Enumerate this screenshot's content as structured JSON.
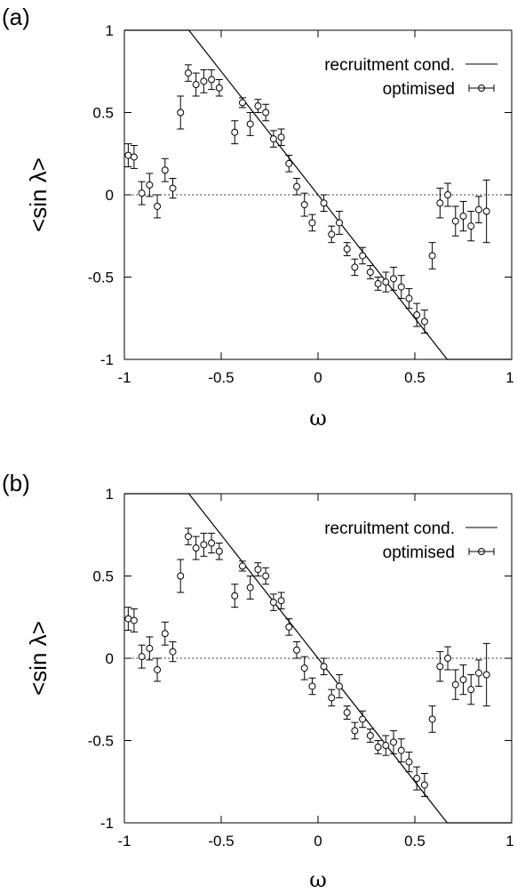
{
  "chart_data": [
    {
      "type": "scatter",
      "panel_label": "(a)",
      "xlabel": "ω",
      "ylabel": "<sin λ>",
      "xlim": [
        -1,
        1
      ],
      "ylim": [
        -1,
        1
      ],
      "xticks": [
        -1,
        -0.5,
        0,
        0.5,
        1
      ],
      "yticks": [
        -1,
        -0.5,
        0,
        0.5,
        1
      ],
      "xtick_labels": [
        "-1",
        "-0.5",
        "0",
        "0.5",
        "1"
      ],
      "ytick_labels": [
        "-1",
        "-0.5",
        "0",
        "0.5",
        "1"
      ],
      "zero_line": "dotted",
      "legend_position": "top-right",
      "series": [
        {
          "name": "recruitment cond.",
          "style": "line",
          "x": [
            -1,
            -0.667,
            0.667,
            1
          ],
          "y": [
            1,
            1,
            -1,
            -1
          ]
        },
        {
          "name": "optimised",
          "style": "points-with-errorbars",
          "points": [
            {
              "x": -0.98,
              "y": 0.24,
              "err": 0.07
            },
            {
              "x": -0.95,
              "y": 0.23,
              "err": 0.07
            },
            {
              "x": -0.91,
              "y": 0.01,
              "err": 0.07
            },
            {
              "x": -0.87,
              "y": 0.06,
              "err": 0.07
            },
            {
              "x": -0.83,
              "y": -0.07,
              "err": 0.07
            },
            {
              "x": -0.79,
              "y": 0.15,
              "err": 0.07
            },
            {
              "x": -0.75,
              "y": 0.04,
              "err": 0.06
            },
            {
              "x": -0.71,
              "y": 0.5,
              "err": 0.1
            },
            {
              "x": -0.67,
              "y": 0.74,
              "err": 0.05
            },
            {
              "x": -0.63,
              "y": 0.67,
              "err": 0.07
            },
            {
              "x": -0.59,
              "y": 0.69,
              "err": 0.07
            },
            {
              "x": -0.55,
              "y": 0.7,
              "err": 0.06
            },
            {
              "x": -0.51,
              "y": 0.65,
              "err": 0.05
            },
            {
              "x": -0.43,
              "y": 0.38,
              "err": 0.07
            },
            {
              "x": -0.39,
              "y": 0.56,
              "err": 0.03
            },
            {
              "x": -0.35,
              "y": 0.43,
              "err": 0.07
            },
            {
              "x": -0.31,
              "y": 0.54,
              "err": 0.04
            },
            {
              "x": -0.27,
              "y": 0.5,
              "err": 0.05
            },
            {
              "x": -0.23,
              "y": 0.34,
              "err": 0.05
            },
            {
              "x": -0.19,
              "y": 0.35,
              "err": 0.05
            },
            {
              "x": -0.15,
              "y": 0.19,
              "err": 0.05
            },
            {
              "x": -0.11,
              "y": 0.05,
              "err": 0.05
            },
            {
              "x": -0.07,
              "y": -0.06,
              "err": 0.07
            },
            {
              "x": -0.03,
              "y": -0.17,
              "err": 0.05
            },
            {
              "x": 0.03,
              "y": -0.05,
              "err": 0.05
            },
            {
              "x": 0.07,
              "y": -0.24,
              "err": 0.05
            },
            {
              "x": 0.11,
              "y": -0.17,
              "err": 0.07
            },
            {
              "x": 0.15,
              "y": -0.33,
              "err": 0.04
            },
            {
              "x": 0.19,
              "y": -0.44,
              "err": 0.05
            },
            {
              "x": 0.23,
              "y": -0.37,
              "err": 0.05
            },
            {
              "x": 0.27,
              "y": -0.47,
              "err": 0.04
            },
            {
              "x": 0.31,
              "y": -0.54,
              "err": 0.04
            },
            {
              "x": 0.35,
              "y": -0.53,
              "err": 0.06
            },
            {
              "x": 0.39,
              "y": -0.51,
              "err": 0.07
            },
            {
              "x": 0.43,
              "y": -0.56,
              "err": 0.07
            },
            {
              "x": 0.47,
              "y": -0.63,
              "err": 0.06
            },
            {
              "x": 0.51,
              "y": -0.73,
              "err": 0.07
            },
            {
              "x": 0.55,
              "y": -0.77,
              "err": 0.07
            },
            {
              "x": 0.59,
              "y": -0.37,
              "err": 0.08
            },
            {
              "x": 0.63,
              "y": -0.05,
              "err": 0.09
            },
            {
              "x": 0.67,
              "y": 0.0,
              "err": 0.07
            },
            {
              "x": 0.71,
              "y": -0.16,
              "err": 0.09
            },
            {
              "x": 0.75,
              "y": -0.13,
              "err": 0.09
            },
            {
              "x": 0.79,
              "y": -0.19,
              "err": 0.09
            },
            {
              "x": 0.83,
              "y": -0.09,
              "err": 0.08
            },
            {
              "x": 0.87,
              "y": -0.1,
              "err": 0.19
            }
          ]
        }
      ]
    },
    {
      "type": "scatter",
      "panel_label": "(b)",
      "xlabel": "ω",
      "ylabel": "<sin λ>",
      "xlim": [
        -1,
        1
      ],
      "ylim": [
        -1,
        1
      ],
      "xticks": [
        -1,
        -0.5,
        0,
        0.5,
        1
      ],
      "yticks": [
        -1,
        -0.5,
        0,
        0.5,
        1
      ],
      "xtick_labels": [
        "-1",
        "-0.5",
        "0",
        "0.5",
        "1"
      ],
      "ytick_labels": [
        "-1",
        "-0.5",
        "0",
        "0.5",
        "1"
      ],
      "zero_line": "dotted",
      "legend_position": "top-right",
      "series": [
        {
          "name": "recruitment cond.",
          "style": "line",
          "x": [
            -1,
            -0.667,
            0.667,
            1
          ],
          "y": [
            1,
            1,
            -1,
            -1
          ]
        },
        {
          "name": "optimised",
          "style": "points-with-errorbars",
          "points": [
            {
              "x": -0.98,
              "y": 0.24,
              "err": 0.07
            },
            {
              "x": -0.95,
              "y": 0.23,
              "err": 0.07
            },
            {
              "x": -0.91,
              "y": 0.01,
              "err": 0.07
            },
            {
              "x": -0.87,
              "y": 0.06,
              "err": 0.07
            },
            {
              "x": -0.83,
              "y": -0.07,
              "err": 0.07
            },
            {
              "x": -0.79,
              "y": 0.15,
              "err": 0.07
            },
            {
              "x": -0.75,
              "y": 0.04,
              "err": 0.06
            },
            {
              "x": -0.71,
              "y": 0.5,
              "err": 0.1
            },
            {
              "x": -0.67,
              "y": 0.74,
              "err": 0.05
            },
            {
              "x": -0.63,
              "y": 0.67,
              "err": 0.07
            },
            {
              "x": -0.59,
              "y": 0.69,
              "err": 0.07
            },
            {
              "x": -0.55,
              "y": 0.7,
              "err": 0.06
            },
            {
              "x": -0.51,
              "y": 0.65,
              "err": 0.05
            },
            {
              "x": -0.43,
              "y": 0.38,
              "err": 0.07
            },
            {
              "x": -0.39,
              "y": 0.56,
              "err": 0.03
            },
            {
              "x": -0.35,
              "y": 0.43,
              "err": 0.07
            },
            {
              "x": -0.31,
              "y": 0.54,
              "err": 0.04
            },
            {
              "x": -0.27,
              "y": 0.5,
              "err": 0.05
            },
            {
              "x": -0.23,
              "y": 0.34,
              "err": 0.05
            },
            {
              "x": -0.19,
              "y": 0.35,
              "err": 0.05
            },
            {
              "x": -0.15,
              "y": 0.19,
              "err": 0.05
            },
            {
              "x": -0.11,
              "y": 0.05,
              "err": 0.05
            },
            {
              "x": -0.07,
              "y": -0.06,
              "err": 0.07
            },
            {
              "x": -0.03,
              "y": -0.17,
              "err": 0.05
            },
            {
              "x": 0.03,
              "y": -0.05,
              "err": 0.05
            },
            {
              "x": 0.07,
              "y": -0.24,
              "err": 0.05
            },
            {
              "x": 0.11,
              "y": -0.17,
              "err": 0.07
            },
            {
              "x": 0.15,
              "y": -0.33,
              "err": 0.04
            },
            {
              "x": 0.19,
              "y": -0.44,
              "err": 0.05
            },
            {
              "x": 0.23,
              "y": -0.37,
              "err": 0.05
            },
            {
              "x": 0.27,
              "y": -0.47,
              "err": 0.04
            },
            {
              "x": 0.31,
              "y": -0.54,
              "err": 0.04
            },
            {
              "x": 0.35,
              "y": -0.53,
              "err": 0.06
            },
            {
              "x": 0.39,
              "y": -0.51,
              "err": 0.07
            },
            {
              "x": 0.43,
              "y": -0.56,
              "err": 0.07
            },
            {
              "x": 0.47,
              "y": -0.63,
              "err": 0.06
            },
            {
              "x": 0.51,
              "y": -0.73,
              "err": 0.07
            },
            {
              "x": 0.55,
              "y": -0.77,
              "err": 0.07
            },
            {
              "x": 0.59,
              "y": -0.37,
              "err": 0.08
            },
            {
              "x": 0.63,
              "y": -0.05,
              "err": 0.09
            },
            {
              "x": 0.67,
              "y": 0.0,
              "err": 0.07
            },
            {
              "x": 0.71,
              "y": -0.16,
              "err": 0.09
            },
            {
              "x": 0.75,
              "y": -0.13,
              "err": 0.09
            },
            {
              "x": 0.79,
              "y": -0.19,
              "err": 0.09
            },
            {
              "x": 0.83,
              "y": -0.09,
              "err": 0.08
            },
            {
              "x": 0.87,
              "y": -0.1,
              "err": 0.19
            }
          ]
        }
      ]
    }
  ]
}
